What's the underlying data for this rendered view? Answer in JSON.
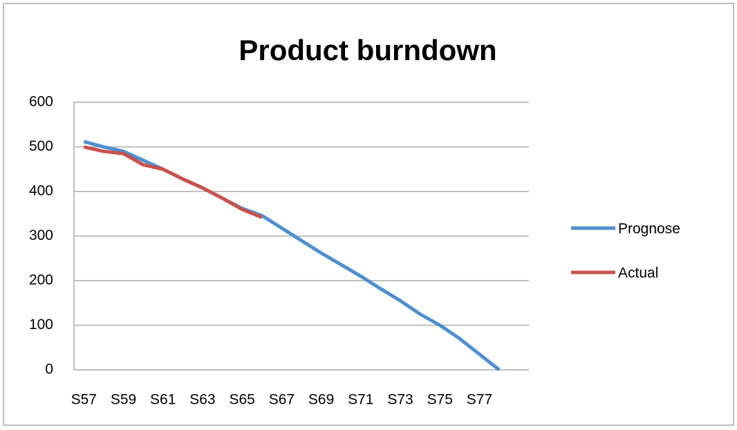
{
  "chart_data": {
    "type": "line",
    "title": "Product burndown",
    "categories": [
      "S57",
      null,
      "S59",
      null,
      "S61",
      null,
      "S63",
      null,
      "S65",
      null,
      "S67",
      null,
      "S69",
      null,
      "S71",
      null,
      "S73",
      null,
      "S75",
      null,
      "S77",
      null,
      null
    ],
    "series": [
      {
        "name": "Prognose",
        "color": "#4f8fcf",
        "values": [
          512,
          500,
          490,
          470,
          450,
          428,
          408,
          385,
          362,
          346,
          318,
          290,
          262,
          236,
          210,
          182,
          155,
          125,
          100,
          70,
          35,
          0,
          null
        ]
      },
      {
        "name": "Actual",
        "color": "#c9514d",
        "values": [
          500,
          490,
          485,
          460,
          450,
          428,
          408,
          385,
          360,
          342,
          null,
          null,
          null,
          null,
          null,
          null,
          null,
          null,
          null,
          null,
          null,
          null,
          null
        ]
      }
    ],
    "ylim": [
      0,
      600
    ],
    "yticks": [
      0,
      100,
      200,
      300,
      400,
      500,
      600
    ],
    "grid": true,
    "legend": "right"
  }
}
